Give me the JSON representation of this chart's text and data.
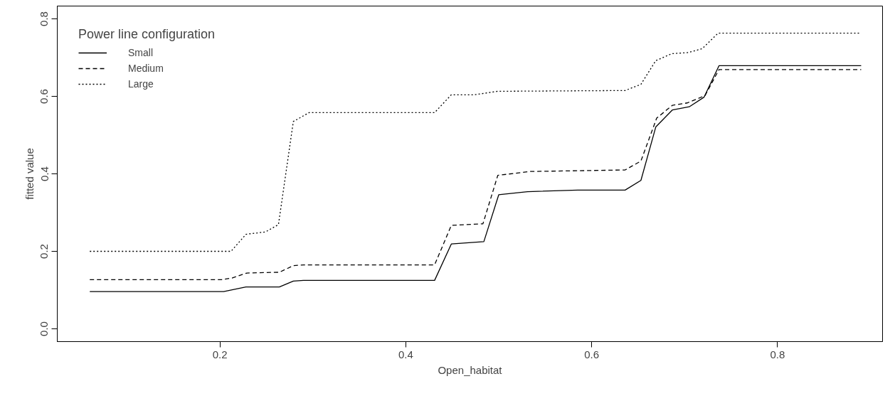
{
  "chart_data": {
    "type": "line",
    "xlabel": "Open_habitat",
    "ylabel": "fitted value",
    "legend_title": "Power line configuration",
    "legend": "top left",
    "grid": false,
    "xlim": [
      0.025,
      0.913
    ],
    "ylim": [
      -0.033,
      0.833
    ],
    "xticks": [
      0.2,
      0.4,
      0.6,
      0.8
    ],
    "yticks": [
      {
        "value": 0,
        "label": "0.0"
      },
      0.2,
      0.4,
      0.6,
      0.8
    ],
    "series": [
      {
        "name": "Small",
        "color": "#000000",
        "line_style": "solid",
        "x": [
          0.06,
          0.204,
          0.228,
          0.264,
          0.279,
          0.29,
          0.431,
          0.449,
          0.484,
          0.5,
          0.531,
          0.585,
          0.636,
          0.653,
          0.669,
          0.687,
          0.705,
          0.721,
          0.737,
          0.89
        ],
        "values": [
          0.096,
          0.096,
          0.108,
          0.108,
          0.123,
          0.125,
          0.125,
          0.219,
          0.225,
          0.346,
          0.354,
          0.358,
          0.358,
          0.383,
          0.521,
          0.565,
          0.573,
          0.598,
          0.679,
          0.679
        ]
      },
      {
        "name": "Medium",
        "color": "#000000",
        "line_style": "dashed",
        "x": [
          0.06,
          0.202,
          0.213,
          0.229,
          0.264,
          0.279,
          0.29,
          0.431,
          0.449,
          0.483,
          0.499,
          0.533,
          0.636,
          0.653,
          0.67,
          0.687,
          0.703,
          0.722,
          0.737,
          0.89
        ],
        "values": [
          0.127,
          0.127,
          0.131,
          0.144,
          0.146,
          0.163,
          0.165,
          0.165,
          0.267,
          0.271,
          0.396,
          0.406,
          0.41,
          0.433,
          0.544,
          0.577,
          0.583,
          0.602,
          0.669,
          0.669
        ]
      },
      {
        "name": "Large",
        "color": "#000000",
        "line_style": "dotted",
        "x": [
          0.06,
          0.212,
          0.228,
          0.249,
          0.263,
          0.279,
          0.296,
          0.431,
          0.449,
          0.474,
          0.499,
          0.636,
          0.653,
          0.669,
          0.686,
          0.704,
          0.719,
          0.736,
          0.89
        ],
        "values": [
          0.2,
          0.2,
          0.244,
          0.25,
          0.269,
          0.535,
          0.558,
          0.558,
          0.604,
          0.604,
          0.613,
          0.615,
          0.631,
          0.692,
          0.71,
          0.713,
          0.723,
          0.763,
          0.763
        ]
      }
    ]
  }
}
